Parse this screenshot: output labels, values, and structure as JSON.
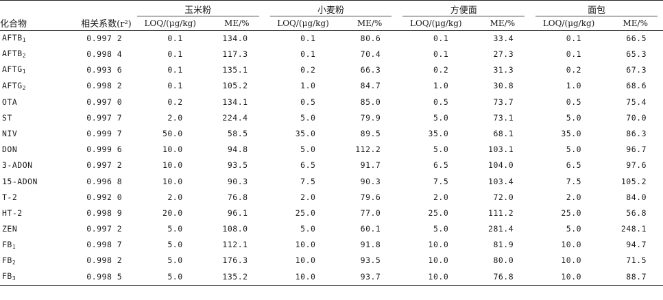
{
  "header": {
    "compound": "化合物",
    "r2_label": "相关系数(r²)",
    "groups": [
      "玉米粉",
      "小麦粉",
      "方便面",
      "面包"
    ],
    "loq_label": "LOQ/(μg/kg)",
    "me_label": "ME/%"
  },
  "rows": [
    {
      "base": "AFTB",
      "sub": "1",
      "r2": "0.997 2",
      "v": [
        "0.1",
        "134.0",
        "0.1",
        "80.6",
        "0.1",
        "33.4",
        "0.1",
        "66.5"
      ]
    },
    {
      "base": "AFTB",
      "sub": "2",
      "r2": "0.998 4",
      "v": [
        "0.1",
        "117.3",
        "0.1",
        "70.4",
        "0.1",
        "27.3",
        "0.1",
        "65.3"
      ]
    },
    {
      "base": "AFTG",
      "sub": "1",
      "r2": "0.993 6",
      "v": [
        "0.1",
        "135.1",
        "0.2",
        "66.3",
        "0.2",
        "31.3",
        "0.2",
        "67.3"
      ]
    },
    {
      "base": "AFTG",
      "sub": "2",
      "r2": "0.998 2",
      "v": [
        "0.1",
        "105.2",
        "1.0",
        "84.7",
        "1.0",
        "30.8",
        "1.0",
        "68.6"
      ]
    },
    {
      "base": "OTA",
      "sub": "",
      "r2": "0.997 0",
      "v": [
        "0.2",
        "134.1",
        "0.5",
        "85.0",
        "0.5",
        "73.7",
        "0.5",
        "75.4"
      ]
    },
    {
      "base": "ST",
      "sub": "",
      "r2": "0.997 7",
      "v": [
        "2.0",
        "224.4",
        "5.0",
        "79.9",
        "5.0",
        "73.1",
        "5.0",
        "70.0"
      ]
    },
    {
      "base": "NIV",
      "sub": "",
      "r2": "0.999 7",
      "v": [
        "50.0",
        "58.5",
        "35.0",
        "89.5",
        "35.0",
        "68.1",
        "35.0",
        "86.3"
      ]
    },
    {
      "base": "DON",
      "sub": "",
      "r2": "0.999 6",
      "v": [
        "10.0",
        "94.8",
        "5.0",
        "112.2",
        "5.0",
        "103.1",
        "5.0",
        "96.7"
      ]
    },
    {
      "base": "3-ADON",
      "sub": "",
      "r2": "0.997 2",
      "v": [
        "10.0",
        "93.5",
        "6.5",
        "91.7",
        "6.5",
        "104.0",
        "6.5",
        "97.6"
      ]
    },
    {
      "base": "15-ADON",
      "sub": "",
      "r2": "0.996 8",
      "v": [
        "10.0",
        "90.3",
        "7.5",
        "90.3",
        "7.5",
        "103.4",
        "7.5",
        "105.2"
      ]
    },
    {
      "base": "T-2",
      "sub": "",
      "r2": "0.992 0",
      "v": [
        "2.0",
        "76.8",
        "2.0",
        "79.6",
        "2.0",
        "72.0",
        "2.0",
        "84.0"
      ]
    },
    {
      "base": "HT-2",
      "sub": "",
      "r2": "0.998 9",
      "v": [
        "20.0",
        "96.1",
        "25.0",
        "77.0",
        "25.0",
        "111.2",
        "25.0",
        "56.8"
      ]
    },
    {
      "base": "ZEN",
      "sub": "",
      "r2": "0.997 2",
      "v": [
        "5.0",
        "108.0",
        "5.0",
        "60.1",
        "5.0",
        "281.4",
        "5.0",
        "248.1"
      ]
    },
    {
      "base": "FB",
      "sub": "1",
      "r2": "0.998 7",
      "v": [
        "5.0",
        "112.1",
        "10.0",
        "91.8",
        "10.0",
        "81.9",
        "10.0",
        "94.7"
      ]
    },
    {
      "base": "FB",
      "sub": "2",
      "r2": "0.998 2",
      "v": [
        "5.0",
        "176.3",
        "10.0",
        "93.5",
        "10.0",
        "80.0",
        "10.0",
        "71.5"
      ]
    },
    {
      "base": "FB",
      "sub": "3",
      "r2": "0.998 5",
      "v": [
        "5.0",
        "135.2",
        "10.0",
        "93.7",
        "10.0",
        "76.8",
        "10.0",
        "88.7"
      ]
    }
  ]
}
